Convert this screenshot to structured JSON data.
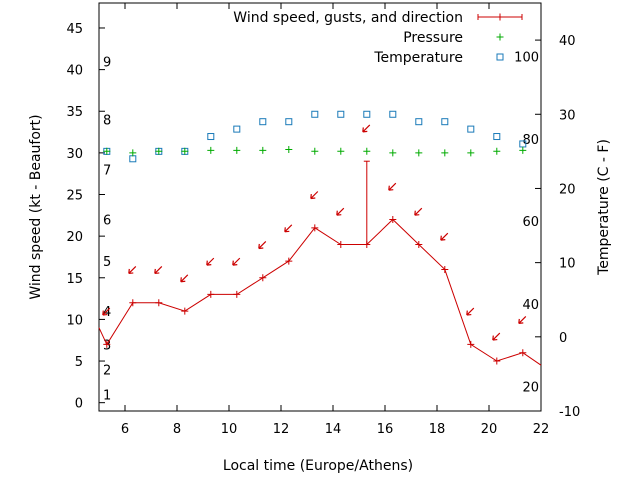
{
  "chart_data": {
    "type": "line",
    "xlabel": "Local time (Europe/Athens)",
    "ylabel_left": "Wind speed (kt - Beaufort)",
    "ylabel_right": "Temperature (C - F)",
    "xlim": [
      5,
      22
    ],
    "x_ticks": [
      6,
      8,
      10,
      12,
      14,
      16,
      18,
      20,
      22
    ],
    "y_left_lim": [
      -1,
      48
    ],
    "y_left_ticks": [
      0,
      5,
      10,
      15,
      20,
      25,
      30,
      35,
      40,
      45
    ],
    "y_right_lim": [
      -10,
      45
    ],
    "y_right_ticks": [
      -10,
      0,
      10,
      20,
      30,
      40
    ],
    "beaufort_labels": [
      {
        "label": "1",
        "kt": 1
      },
      {
        "label": "2",
        "kt": 4
      },
      {
        "label": "3",
        "kt": 7
      },
      {
        "label": "4",
        "kt": 11
      },
      {
        "label": "5",
        "kt": 17
      },
      {
        "label": "6",
        "kt": 22
      },
      {
        "label": "7",
        "kt": 28
      },
      {
        "label": "8",
        "kt": 34
      },
      {
        "label": "9",
        "kt": 41
      }
    ],
    "fahrenheit_labels": [
      {
        "label": "20",
        "c": -6.7
      },
      {
        "label": "40",
        "c": 4.4
      },
      {
        "label": "60",
        "c": 15.6
      },
      {
        "label": "80",
        "c": 26.7
      },
      {
        "label": "100",
        "c": 37.8
      }
    ],
    "legend": [
      {
        "name": "Wind speed, gusts, and direction",
        "color": "#cc0000",
        "marker": "plus-line"
      },
      {
        "name": "Pressure",
        "color": "#00aa00",
        "marker": "plus"
      },
      {
        "name": "Temperature",
        "color": "#1a7ab8",
        "marker": "square"
      }
    ],
    "wind": {
      "x": [
        5,
        5.3,
        6.3,
        7.3,
        8.3,
        9.3,
        10.3,
        11.3,
        12.3,
        13.3,
        14.3,
        15.3,
        16.3,
        17.3,
        18.3,
        19.3,
        20.3,
        21.3,
        22
      ],
      "speed": [
        9,
        7,
        12,
        12,
        11,
        13,
        13,
        15,
        17,
        21,
        19,
        19,
        22,
        19,
        16,
        7,
        5,
        6,
        4.5
      ]
    },
    "gusts": [
      {
        "x": 15.3,
        "low": 19,
        "high": 29
      }
    ],
    "direction_arrows": {
      "x": [
        5.3,
        6.3,
        7.3,
        8.3,
        9.3,
        10.3,
        11.3,
        12.3,
        13.3,
        14.3,
        15.3,
        16.3,
        17.3,
        18.3,
        19.3,
        20.3,
        21.3
      ],
      "y": [
        11,
        16,
        16,
        15,
        17,
        17,
        19,
        21,
        25,
        23,
        33,
        26,
        23,
        20,
        11,
        8,
        10
      ]
    },
    "pressure": {
      "x": [
        5.3,
        6.3,
        7.3,
        8.3,
        9.3,
        10.3,
        11.3,
        12.3,
        13.3,
        14.3,
        15.3,
        16.3,
        17.3,
        18.3,
        19.3,
        20.3,
        21.3
      ],
      "values": [
        30.2,
        30.0,
        30.2,
        30.2,
        30.3,
        30.3,
        30.3,
        30.4,
        30.2,
        30.2,
        30.2,
        30.0,
        30.0,
        30.0,
        30.0,
        30.2,
        30.3
      ]
    },
    "temperature": {
      "x": [
        5.3,
        6.3,
        7.3,
        8.3,
        9.3,
        10.3,
        11.3,
        12.3,
        13.3,
        14.3,
        15.3,
        16.3,
        17.3,
        18.3,
        19.3,
        20.3,
        21.3
      ],
      "values": [
        25,
        24,
        25,
        25,
        27,
        28,
        29,
        29,
        30,
        30,
        30,
        30,
        29,
        29,
        28,
        27,
        26
      ]
    },
    "colors": {
      "wind": "#cc0000",
      "pressure": "#00aa00",
      "temperature": "#1a7ab8",
      "axis": "#000000"
    }
  }
}
